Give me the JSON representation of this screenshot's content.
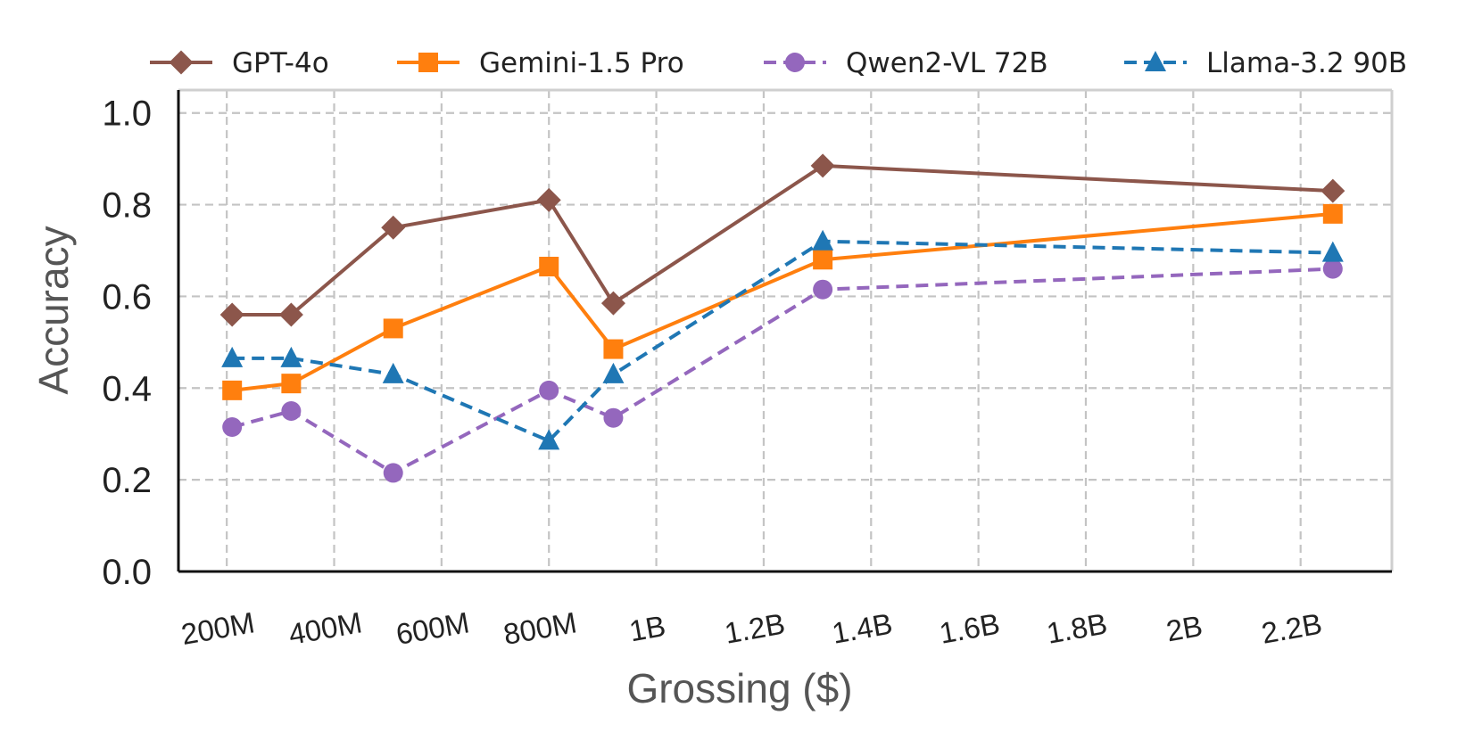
{
  "chart_data": {
    "type": "line",
    "xlabel": "Grossing ($)",
    "ylabel": "Accuracy",
    "xlim": [
      0.11,
      2.37
    ],
    "ylim": [
      0.0,
      1.05
    ],
    "x_ticks": [
      {
        "value": 0.2,
        "label": "200M"
      },
      {
        "value": 0.4,
        "label": "400M"
      },
      {
        "value": 0.6,
        "label": "600M"
      },
      {
        "value": 0.8,
        "label": "800M"
      },
      {
        "value": 1.0,
        "label": "1B"
      },
      {
        "value": 1.2,
        "label": "1.2B"
      },
      {
        "value": 1.4,
        "label": "1.4B"
      },
      {
        "value": 1.6,
        "label": "1.6B"
      },
      {
        "value": 1.8,
        "label": "1.8B"
      },
      {
        "value": 2.0,
        "label": "2B"
      },
      {
        "value": 2.2,
        "label": "2.2B"
      }
    ],
    "y_ticks": [
      {
        "value": 0.0,
        "label": "0.0"
      },
      {
        "value": 0.2,
        "label": "0.2"
      },
      {
        "value": 0.4,
        "label": "0.4"
      },
      {
        "value": 0.6,
        "label": "0.6"
      },
      {
        "value": 0.8,
        "label": "0.8"
      },
      {
        "value": 1.0,
        "label": "1.0"
      }
    ],
    "x_unit_note": "billions of dollars",
    "grid": true,
    "legend_position": "top",
    "series": [
      {
        "name": "GPT-4o",
        "color": "#8c564b",
        "marker": "diamond",
        "dashed": false,
        "points": [
          [
            0.21,
            0.56
          ],
          [
            0.32,
            0.56
          ],
          [
            0.51,
            0.75
          ],
          [
            0.8,
            0.81
          ],
          [
            0.92,
            0.585
          ],
          [
            1.31,
            0.885
          ],
          [
            2.26,
            0.83
          ]
        ]
      },
      {
        "name": "Gemini-1.5 Pro",
        "color": "#ff7f0e",
        "marker": "square",
        "dashed": false,
        "points": [
          [
            0.21,
            0.395
          ],
          [
            0.32,
            0.41
          ],
          [
            0.51,
            0.53
          ],
          [
            0.8,
            0.665
          ],
          [
            0.92,
            0.485
          ],
          [
            1.31,
            0.68
          ],
          [
            2.26,
            0.78
          ]
        ]
      },
      {
        "name": "Qwen2-VL 72B",
        "color": "#9467bd",
        "marker": "circle",
        "dashed": true,
        "points": [
          [
            0.21,
            0.315
          ],
          [
            0.32,
            0.35
          ],
          [
            0.51,
            0.215
          ],
          [
            0.8,
            0.395
          ],
          [
            0.92,
            0.335
          ],
          [
            1.31,
            0.615
          ],
          [
            2.26,
            0.66
          ]
        ]
      },
      {
        "name": "Llama-3.2 90B",
        "color": "#1f77b4",
        "marker": "triangle",
        "dashed": true,
        "points": [
          [
            0.21,
            0.465
          ],
          [
            0.32,
            0.465
          ],
          [
            0.51,
            0.43
          ],
          [
            0.8,
            0.285
          ],
          [
            0.92,
            0.43
          ],
          [
            1.31,
            0.72
          ],
          [
            2.26,
            0.695
          ]
        ]
      }
    ]
  }
}
